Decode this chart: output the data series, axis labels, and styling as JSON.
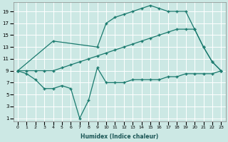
{
  "xlabel": "Humidex (Indice chaleur)",
  "bg_color": "#cce8e4",
  "grid_color": "#ffffff",
  "line_color": "#1a7a6e",
  "xlim": [
    -0.5,
    23.5
  ],
  "ylim": [
    0.5,
    20.5
  ],
  "xticks": [
    0,
    1,
    2,
    3,
    4,
    5,
    6,
    7,
    8,
    9,
    10,
    11,
    12,
    13,
    14,
    15,
    16,
    17,
    18,
    19,
    20,
    21,
    22,
    23
  ],
  "yticks": [
    1,
    3,
    5,
    7,
    9,
    11,
    13,
    15,
    17,
    19
  ],
  "line_upper_x": [
    0,
    4,
    9,
    10,
    11,
    12,
    13,
    14,
    15,
    16,
    17,
    18,
    19,
    20,
    21,
    22,
    23
  ],
  "line_upper_y": [
    9,
    14,
    13,
    17,
    18,
    18.5,
    19,
    19.5,
    20,
    19.5,
    19,
    19,
    19,
    16,
    13,
    10.5,
    9
  ],
  "line_middle_x": [
    0,
    1,
    2,
    3,
    4,
    5,
    6,
    7,
    8,
    9,
    10,
    11,
    12,
    13,
    14,
    15,
    16,
    17,
    18,
    19,
    20,
    21,
    22,
    23
  ],
  "line_middle_y": [
    9,
    9,
    9,
    9,
    9,
    9.5,
    10,
    10.5,
    11,
    11.5,
    12,
    12.5,
    13,
    13.5,
    14,
    14.5,
    15,
    15.5,
    16,
    16,
    16,
    13,
    10.5,
    9
  ],
  "line_lower_x": [
    0,
    1,
    2,
    3,
    4,
    5,
    6,
    7,
    8,
    9,
    10,
    11,
    12,
    13,
    14,
    15,
    16,
    17,
    18,
    19,
    20,
    21,
    22,
    23
  ],
  "line_lower_y": [
    9,
    8.5,
    7.5,
    6,
    6,
    6.5,
    6,
    1,
    4,
    9.5,
    7,
    7,
    7,
    7.5,
    7.5,
    7.5,
    7.5,
    8,
    8,
    8.5,
    8.5,
    8.5,
    8.5,
    9
  ]
}
